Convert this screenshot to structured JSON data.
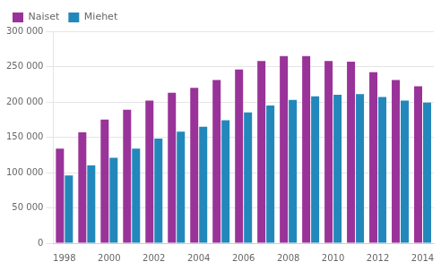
{
  "chart_data": {
    "type": "bar",
    "categories": [
      "1998",
      null,
      "2000",
      null,
      "2002",
      null,
      "2004",
      null,
      "2006",
      null,
      "2008",
      null,
      "2010",
      null,
      "2012",
      null,
      "2014"
    ],
    "series": [
      {
        "name": "Naiset",
        "color": "#993399",
        "values": [
          134000,
          157000,
          175000,
          189000,
          202000,
          213000,
          220000,
          231000,
          246000,
          258000,
          265000,
          265000,
          258000,
          257000,
          242000,
          231000,
          222000
        ]
      },
      {
        "name": "Miehet",
        "color": "#2288bb",
        "values": [
          96000,
          110000,
          121000,
          134000,
          148000,
          158000,
          165000,
          174000,
          185000,
          195000,
          203000,
          208000,
          210000,
          211000,
          207000,
          202000,
          199000
        ]
      }
    ],
    "ylim": [
      0,
      300000
    ],
    "yticks": [
      0,
      {
        "value": 50000,
        "label": "50 000"
      },
      {
        "value": 100000,
        "label": "100 000"
      },
      {
        "value": 150000,
        "label": "150 000"
      },
      {
        "value": 200000,
        "label": "200 000"
      },
      {
        "value": 250000,
        "label": "250 000"
      },
      {
        "value": 300000,
        "label": "300 000"
      }
    ],
    "grid": true,
    "legend": "upper left"
  }
}
